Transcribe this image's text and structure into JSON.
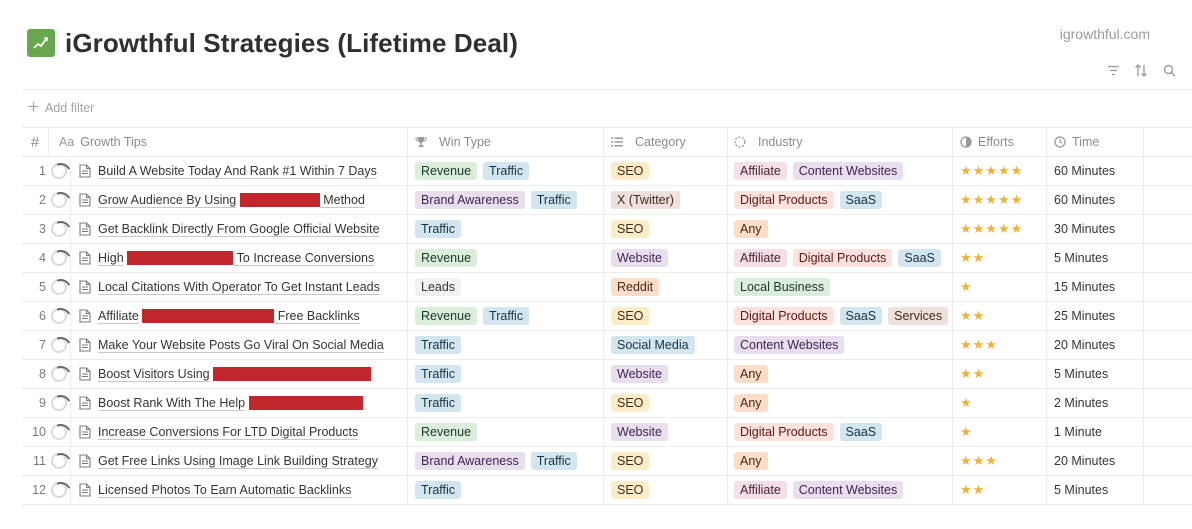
{
  "page": {
    "title": "iGrowthful Strategies (Lifetime Deal)",
    "site": "igrowthful.com",
    "add_filter": "Add filter",
    "icon": "chart-trend-icon",
    "accent": "#6aa84f"
  },
  "toolbar": {
    "icons": [
      "filter-icon",
      "sort-icon",
      "search-icon"
    ]
  },
  "columns": {
    "num": "#",
    "title_prefix": "Aa",
    "title": "Growth Tips",
    "win": "Win Type",
    "cat": "Category",
    "ind": "Industry",
    "eff": "Efforts",
    "time": "Time"
  },
  "rows": [
    {
      "num": "1",
      "title": "Build A Website Today And Rank #1 Within 7 Days",
      "redact": null,
      "win": [
        [
          "Revenue",
          "green"
        ],
        [
          "Traffic",
          "blue"
        ]
      ],
      "cat": [
        [
          "SEO",
          "yellow"
        ]
      ],
      "ind": [
        [
          "Affiliate",
          "pink"
        ],
        [
          "Content Websites",
          "purple"
        ]
      ],
      "stars": "★★★★★",
      "time": "60 Minutes"
    },
    {
      "num": "2",
      "title": "Grow Audience By Using",
      "redact": 80,
      "suffix": "Method",
      "win": [
        [
          "Brand Awareness",
          "purple"
        ],
        [
          "Traffic",
          "blue"
        ]
      ],
      "cat": [
        [
          "X (Twitter)",
          "brown"
        ]
      ],
      "ind": [
        [
          "Digital Products",
          "red"
        ],
        [
          "SaaS",
          "blue"
        ]
      ],
      "stars": "★★★★★",
      "time": "60 Minutes"
    },
    {
      "num": "3",
      "title": "Get Backlink Directly From Google Official Website",
      "redact": null,
      "win": [
        [
          "Traffic",
          "blue"
        ]
      ],
      "cat": [
        [
          "SEO",
          "yellow"
        ]
      ],
      "ind": [
        [
          "Any",
          "orange"
        ]
      ],
      "stars": "★★★★★",
      "time": "30 Minutes"
    },
    {
      "num": "4",
      "title": "High",
      "redact": 106,
      "suffix": "To Increase Conversions",
      "win": [
        [
          "Revenue",
          "green"
        ]
      ],
      "cat": [
        [
          "Website",
          "purple"
        ]
      ],
      "ind": [
        [
          "Affiliate",
          "pink"
        ],
        [
          "Digital Products",
          "red"
        ],
        [
          "SaaS",
          "blue"
        ]
      ],
      "stars": "★★",
      "time": "5 Minutes"
    },
    {
      "num": "5",
      "title": "Local Citations With Operator To Get Instant Leads",
      "redact": null,
      "win": [
        [
          "Leads",
          "default"
        ]
      ],
      "cat": [
        [
          "Reddit",
          "orange"
        ]
      ],
      "ind": [
        [
          "Local Business",
          "green"
        ]
      ],
      "stars": "★",
      "time": "15 Minutes"
    },
    {
      "num": "6",
      "title": "Affiliate",
      "redact": 132,
      "suffix": "Free Backlinks",
      "win": [
        [
          "Revenue",
          "green"
        ],
        [
          "Traffic",
          "blue"
        ]
      ],
      "cat": [
        [
          "SEO",
          "yellow"
        ]
      ],
      "ind": [
        [
          "Digital Products",
          "red"
        ],
        [
          "SaaS",
          "blue"
        ],
        [
          "Services",
          "brown"
        ]
      ],
      "stars": "★★",
      "time": "25 Minutes"
    },
    {
      "num": "7",
      "title": "Make Your Website Posts Go Viral On Social Media",
      "redact": null,
      "win": [
        [
          "Traffic",
          "blue"
        ]
      ],
      "cat": [
        [
          "Social Media",
          "blue"
        ]
      ],
      "ind": [
        [
          "Content Websites",
          "purple"
        ]
      ],
      "stars": "★★★",
      "time": "20 Minutes"
    },
    {
      "num": "8",
      "title": "Boost Visitors Using",
      "redact": 158,
      "suffix": "",
      "win": [
        [
          "Traffic",
          "blue"
        ]
      ],
      "cat": [
        [
          "Website",
          "purple"
        ]
      ],
      "ind": [
        [
          "Any",
          "orange"
        ]
      ],
      "stars": "★★",
      "time": "5 Minutes"
    },
    {
      "num": "9",
      "title": "Boost Rank With The Help",
      "redact": 114,
      "suffix": "",
      "win": [
        [
          "Traffic",
          "blue"
        ]
      ],
      "cat": [
        [
          "SEO",
          "yellow"
        ]
      ],
      "ind": [
        [
          "Any",
          "orange"
        ]
      ],
      "stars": "★",
      "time": "2 Minutes"
    },
    {
      "num": "10",
      "title": "Increase Conversions For LTD Digital Products",
      "redact": null,
      "win": [
        [
          "Revenue",
          "green"
        ]
      ],
      "cat": [
        [
          "Website",
          "purple"
        ]
      ],
      "ind": [
        [
          "Digital Products",
          "red"
        ],
        [
          "SaaS",
          "blue"
        ]
      ],
      "stars": "★",
      "time": "1 Minute"
    },
    {
      "num": "11",
      "title": "Get Free Links Using Image Link Building Strategy",
      "redact": null,
      "win": [
        [
          "Brand Awareness",
          "purple"
        ],
        [
          "Traffic",
          "blue"
        ]
      ],
      "cat": [
        [
          "SEO",
          "yellow"
        ]
      ],
      "ind": [
        [
          "Any",
          "orange"
        ]
      ],
      "stars": "★★★",
      "time": "20 Minutes"
    },
    {
      "num": "12",
      "title": "Licensed Photos To Earn Automatic Backlinks",
      "redact": null,
      "win": [
        [
          "Traffic",
          "blue"
        ]
      ],
      "cat": [
        [
          "SEO",
          "yellow"
        ]
      ],
      "ind": [
        [
          "Affiliate",
          "pink"
        ],
        [
          "Content Websites",
          "purple"
        ]
      ],
      "stars": "★★",
      "time": "5 Minutes"
    }
  ]
}
